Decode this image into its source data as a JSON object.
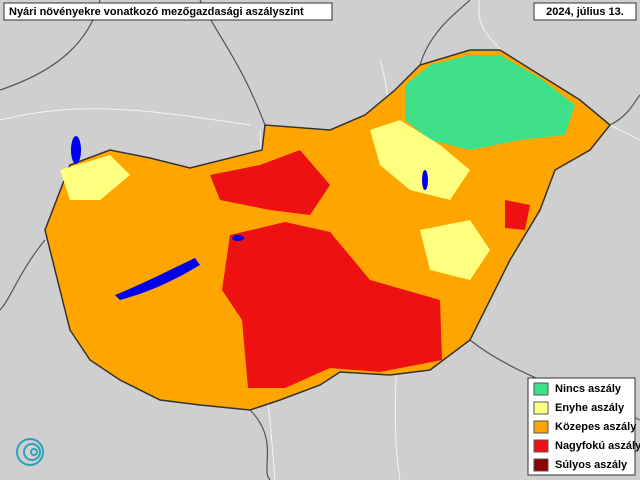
{
  "header": {
    "title": "Nyári növényekre vonatkozó mezőgazdasági aszályszint",
    "date": "2024, július 13."
  },
  "legend": {
    "items": [
      {
        "label": "Nincs aszály",
        "color": "#3ee08a"
      },
      {
        "label": "Enyhe aszály",
        "color": "#ffff80"
      },
      {
        "label": "Közepes aszály",
        "color": "#ffa500"
      },
      {
        "label": "Nagyfokú aszály",
        "color": "#ee1111"
      },
      {
        "label": "Súlyos aszály",
        "color": "#8b0000"
      }
    ]
  }
}
